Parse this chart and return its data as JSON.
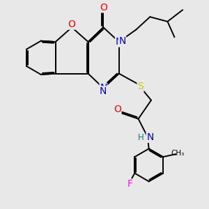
{
  "bg_color": "#e8e8e8",
  "atom_colors": {
    "C": "#000000",
    "N": "#0000cc",
    "O": "#ff0000",
    "S": "#cccc00",
    "F": "#ff00ff",
    "H": "#008080"
  },
  "bond_color": "#000000",
  "bond_width": 1.4,
  "dbo": 0.055,
  "font_size": 8.5,
  "figsize": [
    3.0,
    3.0
  ],
  "dpi": 100
}
